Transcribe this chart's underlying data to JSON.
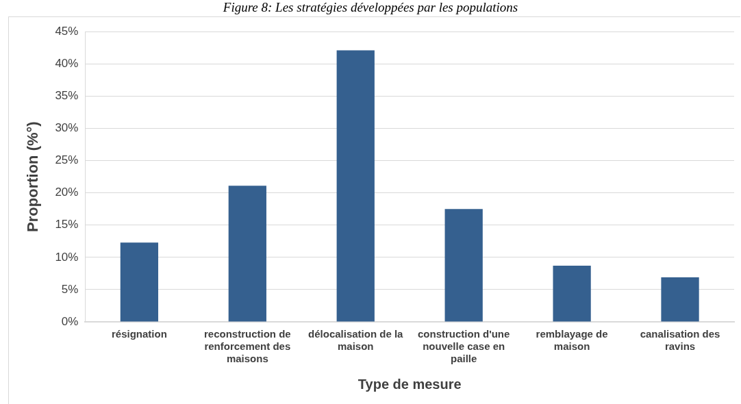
{
  "chart_data": {
    "type": "bar",
    "title": "Figure 8: Les stratégies développées par les populations",
    "xlabel": "Type de mesure",
    "ylabel": "Proportion (%°)",
    "categories": [
      "résignation",
      "reconstruction de renforcement des maisons",
      "délocalisation de la maison",
      "construction d'une nouvelle case en paille",
      "remblayage de maison",
      "canalisation des ravins"
    ],
    "values": [
      12.3,
      21.1,
      42.1,
      17.5,
      8.7,
      6.9
    ],
    "color": "#35608f",
    "ylim": [
      0,
      45
    ],
    "yticks": [
      {
        "value": 0,
        "label": "0%"
      },
      {
        "value": 5,
        "label": "5%"
      },
      {
        "value": 10,
        "label": "10%"
      },
      {
        "value": 15,
        "label": "15%"
      },
      {
        "value": 20,
        "label": "20%"
      },
      {
        "value": 25,
        "label": "25%"
      },
      {
        "value": 30,
        "label": "30%"
      },
      {
        "value": 35,
        "label": "35%"
      },
      {
        "value": 40,
        "label": "40%"
      },
      {
        "value": 45,
        "label": "45%"
      }
    ],
    "grid": "y"
  }
}
